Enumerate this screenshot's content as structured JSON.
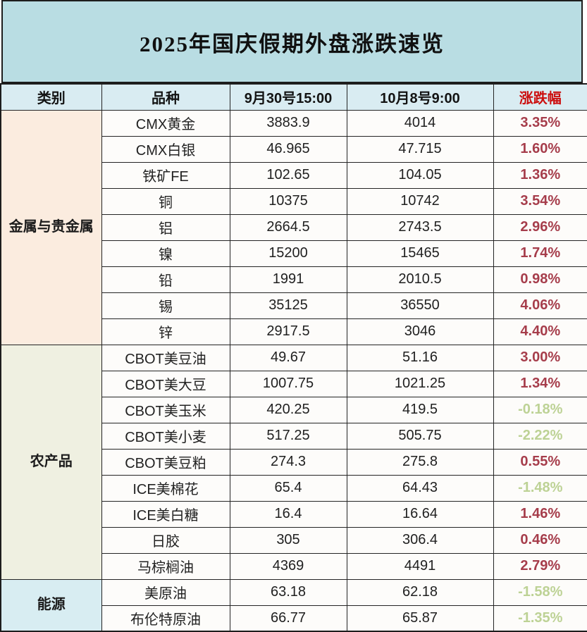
{
  "title": "2025年国庆假期外盘涨跌速览",
  "columns": {
    "category": "类别",
    "variety": "品种",
    "time1": "9月30号15:00",
    "time2": "10月8号9:00",
    "change": "涨跌幅"
  },
  "colors": {
    "title_bg": "#b9dde3",
    "header_bg": "#d9ecf2",
    "header_change_red": "#cc0e0e",
    "metals_bg": "#fbecdf",
    "agri_bg": "#eff0e1",
    "energy_bg": "#d8edf2",
    "positive_change": "#a63d4b",
    "negative_change": "#bdd295",
    "cell_bg": "#fdfcfa",
    "grid_line": "#242424"
  },
  "sections": [
    {
      "category": "金属与贵金属",
      "bg": "#fbecdf",
      "rows": [
        {
          "variety": "CMX黄金",
          "t1": "3883.9",
          "t2": "4014",
          "change": "3.35%",
          "direction": "up"
        },
        {
          "variety": "CMX白银",
          "t1": "46.965",
          "t2": "47.715",
          "change": "1.60%",
          "direction": "up"
        },
        {
          "variety": "铁矿FE",
          "t1": "102.65",
          "t2": "104.05",
          "change": "1.36%",
          "direction": "up"
        },
        {
          "variety": "铜",
          "t1": "10375",
          "t2": "10742",
          "change": "3.54%",
          "direction": "up"
        },
        {
          "variety": "铝",
          "t1": "2664.5",
          "t2": "2743.5",
          "change": "2.96%",
          "direction": "up"
        },
        {
          "variety": "镍",
          "t1": "15200",
          "t2": "15465",
          "change": "1.74%",
          "direction": "up"
        },
        {
          "variety": "铅",
          "t1": "1991",
          "t2": "2010.5",
          "change": "0.98%",
          "direction": "up"
        },
        {
          "variety": "锡",
          "t1": "35125",
          "t2": "36550",
          "change": "4.06%",
          "direction": "up"
        },
        {
          "variety": "锌",
          "t1": "2917.5",
          "t2": "3046",
          "change": "4.40%",
          "direction": "up"
        }
      ]
    },
    {
      "category": "农产品",
      "bg": "#eff0e1",
      "rows": [
        {
          "variety": "CBOT美豆油",
          "t1": "49.67",
          "t2": "51.16",
          "change": "3.00%",
          "direction": "up"
        },
        {
          "variety": "CBOT美大豆",
          "t1": "1007.75",
          "t2": "1021.25",
          "change": "1.34%",
          "direction": "up"
        },
        {
          "variety": "CBOT美玉米",
          "t1": "420.25",
          "t2": "419.5",
          "change": "-0.18%",
          "direction": "down"
        },
        {
          "variety": "CBOT美小麦",
          "t1": "517.25",
          "t2": "505.75",
          "change": "-2.22%",
          "direction": "down"
        },
        {
          "variety": "CBOT美豆粕",
          "t1": "274.3",
          "t2": "275.8",
          "change": "0.55%",
          "direction": "up"
        },
        {
          "variety": "ICE美棉花",
          "t1": "65.4",
          "t2": "64.43",
          "change": "-1.48%",
          "direction": "down"
        },
        {
          "variety": "ICE美白糖",
          "t1": "16.4",
          "t2": "16.64",
          "change": "1.46%",
          "direction": "up"
        },
        {
          "variety": "日胶",
          "t1": "305",
          "t2": "306.4",
          "change": "0.46%",
          "direction": "up"
        },
        {
          "variety": "马棕榈油",
          "t1": "4369",
          "t2": "4491",
          "change": "2.79%",
          "direction": "up"
        }
      ]
    },
    {
      "category": "能源",
      "bg": "#d8edf2",
      "rows": [
        {
          "variety": "美原油",
          "t1": "63.18",
          "t2": "62.18",
          "change": "-1.58%",
          "direction": "down"
        },
        {
          "variety": "布伦特原油",
          "t1": "66.77",
          "t2": "65.87",
          "change": "-1.35%",
          "direction": "down"
        }
      ]
    }
  ],
  "chart_data": {
    "type": "table",
    "title": "2025年国庆假期外盘涨跌速览",
    "columns": [
      "类别",
      "品种",
      "9月30号15:00",
      "10月8号9:00",
      "涨跌幅"
    ],
    "rows": [
      [
        "金属与贵金属",
        "CMX黄金",
        3883.9,
        4014,
        "3.35%"
      ],
      [
        "金属与贵金属",
        "CMX白银",
        46.965,
        47.715,
        "1.60%"
      ],
      [
        "金属与贵金属",
        "铁矿FE",
        102.65,
        104.05,
        "1.36%"
      ],
      [
        "金属与贵金属",
        "铜",
        10375,
        10742,
        "3.54%"
      ],
      [
        "金属与贵金属",
        "铝",
        2664.5,
        2743.5,
        "2.96%"
      ],
      [
        "金属与贵金属",
        "镍",
        15200,
        15465,
        "1.74%"
      ],
      [
        "金属与贵金属",
        "铅",
        1991,
        2010.5,
        "0.98%"
      ],
      [
        "金属与贵金属",
        "锡",
        35125,
        36550,
        "4.06%"
      ],
      [
        "金属与贵金属",
        "锌",
        2917.5,
        3046,
        "4.40%"
      ],
      [
        "农产品",
        "CBOT美豆油",
        49.67,
        51.16,
        "3.00%"
      ],
      [
        "农产品",
        "CBOT美大豆",
        1007.75,
        1021.25,
        "1.34%"
      ],
      [
        "农产品",
        "CBOT美玉米",
        420.25,
        419.5,
        "-0.18%"
      ],
      [
        "农产品",
        "CBOT美小麦",
        517.25,
        505.75,
        "-2.22%"
      ],
      [
        "农产品",
        "CBOT美豆粕",
        274.3,
        275.8,
        "0.55%"
      ],
      [
        "农产品",
        "ICE美棉花",
        65.4,
        64.43,
        "-1.48%"
      ],
      [
        "农产品",
        "ICE美白糖",
        16.4,
        16.64,
        "1.46%"
      ],
      [
        "农产品",
        "日胶",
        305,
        306.4,
        "0.46%"
      ],
      [
        "农产品",
        "马棕榈油",
        4369,
        4491,
        "2.79%"
      ],
      [
        "能源",
        "美原油",
        63.18,
        62.18,
        "-1.58%"
      ],
      [
        "能源",
        "布伦特原油",
        66.77,
        65.87,
        "-1.35%"
      ]
    ]
  }
}
